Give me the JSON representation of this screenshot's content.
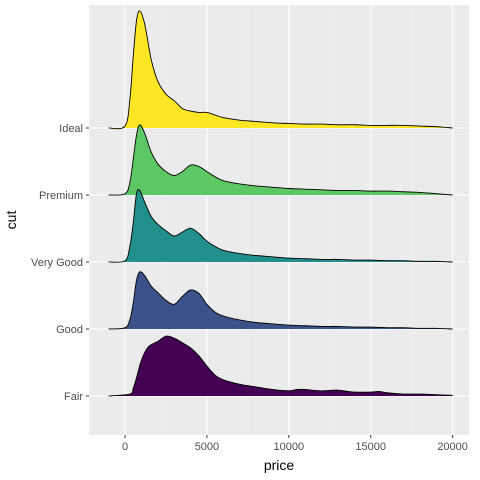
{
  "chart_data": {
    "type": "area",
    "xlabel": "price",
    "ylabel": "cut",
    "xlim": [
      -2200,
      21000
    ],
    "x_ticks": [
      0,
      5000,
      10000,
      15000,
      20000
    ],
    "x_tick_labels": [
      "0",
      "5000",
      "10000",
      "15000",
      "20000"
    ],
    "categories": [
      "Fair",
      "Good",
      "Very Good",
      "Premium",
      "Ideal"
    ],
    "grid": true,
    "series": [
      {
        "name": "Fair",
        "color": "#440154",
        "x": [
          -1000,
          300,
          500,
          700,
          1000,
          1400,
          2000,
          2500,
          3000,
          3500,
          4000,
          4500,
          5000,
          5500,
          6000,
          7000,
          8000,
          9000,
          10000,
          10500,
          11000,
          12000,
          13000,
          14000,
          15000,
          15500,
          16000,
          17000,
          18000,
          19000,
          20000
        ],
        "density": [
          0.0,
          0.03,
          0.12,
          0.28,
          0.55,
          0.75,
          0.84,
          0.92,
          0.89,
          0.82,
          0.74,
          0.62,
          0.46,
          0.32,
          0.25,
          0.18,
          0.14,
          0.1,
          0.08,
          0.1,
          0.1,
          0.08,
          0.09,
          0.06,
          0.06,
          0.07,
          0.05,
          0.03,
          0.03,
          0.02,
          0.01
        ]
      },
      {
        "name": "Good",
        "color": "#3B528B",
        "x": [
          -1000,
          0,
          300,
          500,
          700,
          900,
          1200,
          1600,
          2000,
          2500,
          3000,
          3500,
          4000,
          4500,
          5000,
          5500,
          6000,
          7000,
          8000,
          9000,
          10000,
          11000,
          12000,
          13000,
          14000,
          15000,
          16000,
          17000,
          18000,
          19000,
          20000
        ],
        "density": [
          0.0,
          0.02,
          0.15,
          0.4,
          0.75,
          0.88,
          0.82,
          0.66,
          0.56,
          0.44,
          0.38,
          0.5,
          0.6,
          0.55,
          0.38,
          0.26,
          0.2,
          0.14,
          0.1,
          0.08,
          0.06,
          0.05,
          0.04,
          0.04,
          0.03,
          0.03,
          0.02,
          0.02,
          0.01,
          0.01,
          0.0
        ]
      },
      {
        "name": "Very Good",
        "color": "#21908C",
        "x": [
          -1000,
          0,
          300,
          500,
          700,
          900,
          1200,
          1600,
          2000,
          2500,
          3000,
          3500,
          4000,
          4500,
          5000,
          5500,
          6000,
          7000,
          8000,
          9000,
          10000,
          11000,
          12000,
          13000,
          14000,
          15000,
          16000,
          17000,
          18000,
          19000,
          20000
        ],
        "density": [
          0.0,
          0.02,
          0.25,
          0.6,
          1.05,
          1.1,
          0.92,
          0.7,
          0.58,
          0.48,
          0.4,
          0.46,
          0.52,
          0.44,
          0.32,
          0.24,
          0.18,
          0.13,
          0.1,
          0.08,
          0.06,
          0.05,
          0.04,
          0.04,
          0.03,
          0.03,
          0.02,
          0.02,
          0.01,
          0.01,
          0.0
        ]
      },
      {
        "name": "Premium",
        "color": "#5DC863",
        "x": [
          -1000,
          0,
          300,
          500,
          700,
          900,
          1200,
          1600,
          2000,
          2500,
          3000,
          3500,
          4000,
          4500,
          5000,
          5500,
          6000,
          7000,
          8000,
          9000,
          10000,
          11000,
          12000,
          13000,
          14000,
          15000,
          16000,
          17000,
          18000,
          19000,
          20000
        ],
        "density": [
          0.0,
          0.02,
          0.2,
          0.55,
          0.92,
          1.08,
          0.95,
          0.66,
          0.48,
          0.36,
          0.3,
          0.36,
          0.46,
          0.44,
          0.36,
          0.28,
          0.22,
          0.17,
          0.14,
          0.12,
          0.1,
          0.09,
          0.08,
          0.07,
          0.07,
          0.06,
          0.06,
          0.05,
          0.04,
          0.02,
          0.0
        ]
      },
      {
        "name": "Ideal",
        "color": "#FDE725",
        "x": [
          -1000,
          0,
          300,
          500,
          700,
          900,
          1200,
          1600,
          2000,
          2500,
          3000,
          3500,
          4000,
          4500,
          5000,
          5500,
          6000,
          7000,
          8000,
          9000,
          10000,
          11000,
          12000,
          13000,
          14000,
          15000,
          16000,
          17000,
          18000,
          19000,
          20000
        ],
        "density": [
          0.0,
          0.03,
          0.45,
          1.1,
          1.65,
          1.8,
          1.6,
          1.05,
          0.72,
          0.52,
          0.42,
          0.3,
          0.26,
          0.24,
          0.24,
          0.2,
          0.16,
          0.12,
          0.1,
          0.08,
          0.07,
          0.06,
          0.06,
          0.05,
          0.05,
          0.04,
          0.04,
          0.04,
          0.03,
          0.02,
          0.0
        ]
      }
    ]
  }
}
